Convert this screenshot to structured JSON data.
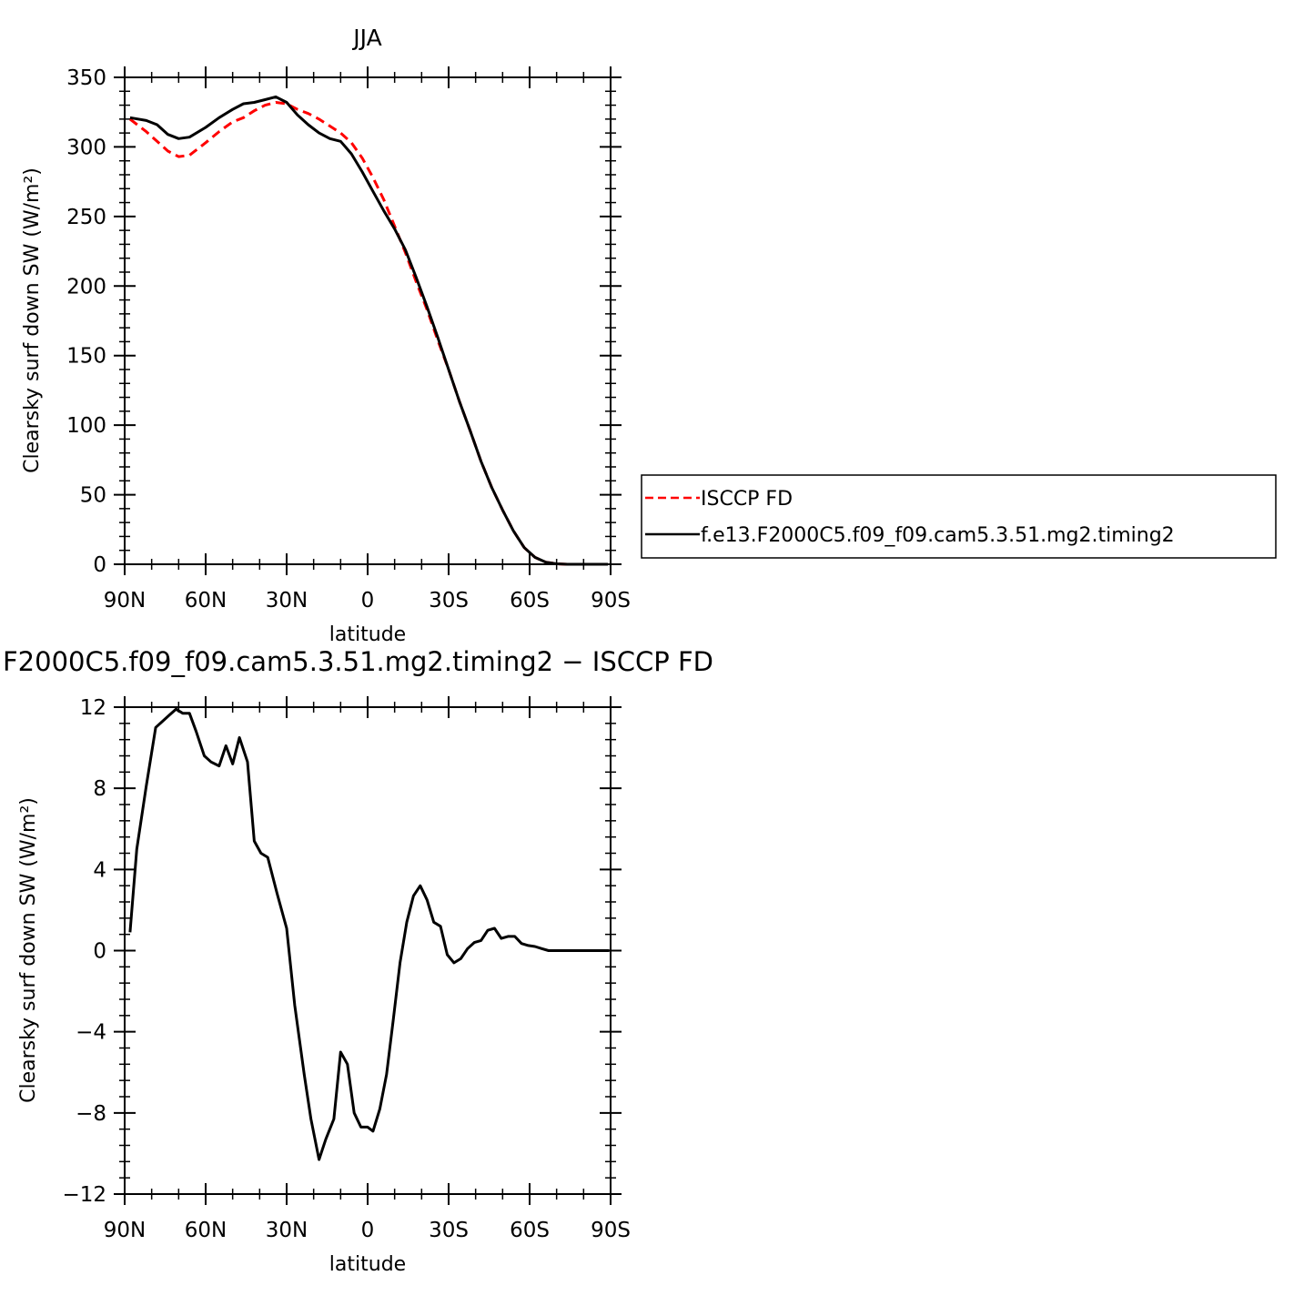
{
  "chart_data": [
    {
      "type": "line",
      "title": "JJA",
      "xlabel": "latitude",
      "ylabel": "Clearsky surf down SW (W/m²)",
      "xlim": [
        90,
        -90
      ],
      "ylim": [
        0,
        350
      ],
      "xticks": [
        90,
        60,
        30,
        0,
        -30,
        -60,
        -90
      ],
      "xtick_labels": [
        "90N",
        "60N",
        "30N",
        "0",
        "30S",
        "60S",
        "90S"
      ],
      "yticks": [
        0,
        50,
        100,
        150,
        200,
        250,
        300,
        350
      ],
      "ytick_labels": [
        "0",
        "50",
        "100",
        "150",
        "200",
        "250",
        "300",
        "350"
      ],
      "legend_placement": "right",
      "series": [
        {
          "name": "ISCCP FD",
          "color": "#ff0000",
          "dash": "dashed",
          "x": [
            88,
            82,
            78,
            74,
            70,
            66,
            60,
            55,
            50,
            46,
            42,
            38,
            34,
            30,
            26,
            22,
            18,
            14,
            10,
            6,
            2,
            -2,
            -6,
            -10,
            -14,
            -18,
            -22,
            -26,
            -30,
            -34,
            -38,
            -42,
            -46,
            -50,
            -54,
            -58,
            -62,
            -66,
            -70,
            -74,
            -78,
            -82,
            -86,
            -89
          ],
          "values": [
            320,
            311,
            304,
            297,
            293,
            294,
            303,
            311,
            318,
            321,
            326,
            330,
            332,
            331,
            327,
            324,
            320,
            315,
            310,
            303,
            292,
            278,
            262,
            243,
            224,
            203,
            183,
            161,
            140,
            117,
            96,
            74,
            55,
            39,
            24,
            12,
            5,
            1.5,
            0.3,
            0,
            0,
            0,
            0,
            0
          ]
        },
        {
          "name": "f.e13.F2000C5.f09_f09.cam5.3.51.mg2.timing2",
          "color": "#000000",
          "dash": "solid",
          "x": [
            88,
            82,
            78,
            74,
            70,
            66,
            60,
            55,
            50,
            46,
            42,
            38,
            34,
            30,
            26,
            22,
            18,
            14,
            10,
            6,
            2,
            -2,
            -6,
            -10,
            -14,
            -18,
            -22,
            -26,
            -30,
            -34,
            -38,
            -42,
            -46,
            -50,
            -54,
            -58,
            -62,
            -66,
            -70,
            -74,
            -78,
            -82,
            -86,
            -89
          ],
          "values": [
            321,
            319,
            316,
            309,
            306,
            307,
            314,
            321,
            327,
            331,
            332,
            334,
            336,
            332,
            323,
            316,
            310,
            306,
            304,
            295,
            282,
            268,
            254,
            241,
            226,
            206,
            185,
            163,
            140,
            117,
            96,
            74,
            55,
            39,
            24,
            12,
            5,
            1.5,
            0.3,
            0,
            0,
            0,
            0,
            0
          ]
        }
      ]
    },
    {
      "type": "line",
      "title": "F2000C5.f09_f09.cam5.3.51.mg2.timing2 − ISCCP FD",
      "xlabel": "latitude",
      "ylabel": "Clearsky surf down SW (W/m²)",
      "xlim": [
        90,
        -90
      ],
      "ylim": [
        -12,
        12
      ],
      "xticks": [
        90,
        60,
        30,
        0,
        -30,
        -60,
        -90
      ],
      "xtick_labels": [
        "90N",
        "60N",
        "30N",
        "0",
        "30S",
        "60S",
        "90S"
      ],
      "yticks": [
        -12,
        -8,
        -4,
        0,
        4,
        8,
        12
      ],
      "ytick_labels": [
        "−12",
        "−8",
        "−4",
        "0",
        "4",
        "8",
        "12"
      ],
      "series": [
        {
          "color": "#000000",
          "x": [
            88,
            85.5,
            82,
            78.5,
            76,
            73.5,
            71,
            68.5,
            66,
            63.5,
            60.5,
            58,
            55,
            52.5,
            50,
            47.5,
            44.5,
            42,
            39.5,
            37,
            33.5,
            30,
            27,
            23.5,
            21,
            18,
            15.5,
            12.5,
            10,
            7.5,
            5,
            2.5,
            0,
            -2,
            -4.5,
            -7,
            -9.5,
            -12,
            -14.5,
            -17,
            -19.5,
            -22,
            -24.5,
            -27,
            -29.5,
            -32,
            -34.5,
            -37,
            -39.5,
            -42,
            -44.5,
            -47,
            -49.5,
            -52,
            -54.5,
            -57,
            -59.5,
            -62,
            -64.5,
            -67,
            -69.5,
            -72,
            -74.5,
            -77,
            -79.5,
            -82,
            -84.5,
            -87,
            -89.5
          ],
          "values": [
            0.9,
            5.0,
            8.1,
            11.0,
            11.3,
            11.6,
            11.9,
            11.7,
            11.7,
            10.8,
            9.6,
            9.3,
            9.1,
            10.1,
            9.2,
            10.5,
            9.3,
            5.4,
            4.8,
            4.6,
            2.8,
            1.1,
            -2.7,
            -6.1,
            -8.3,
            -10.3,
            -9.3,
            -8.3,
            -5.0,
            -5.6,
            -8.0,
            -8.7,
            -8.7,
            -8.9,
            -7.8,
            -6.1,
            -3.4,
            -0.6,
            1.4,
            2.7,
            3.2,
            2.5,
            1.4,
            1.2,
            -0.2,
            -0.6,
            -0.4,
            0.1,
            0.4,
            0.5,
            1.0,
            1.1,
            0.6,
            0.7,
            0.7,
            0.35,
            0.25,
            0.2,
            0.1,
            0.0,
            0.0,
            0.0,
            0.0,
            0.0,
            0.0,
            0.0,
            0.0,
            0.0,
            0.0
          ]
        }
      ]
    }
  ]
}
